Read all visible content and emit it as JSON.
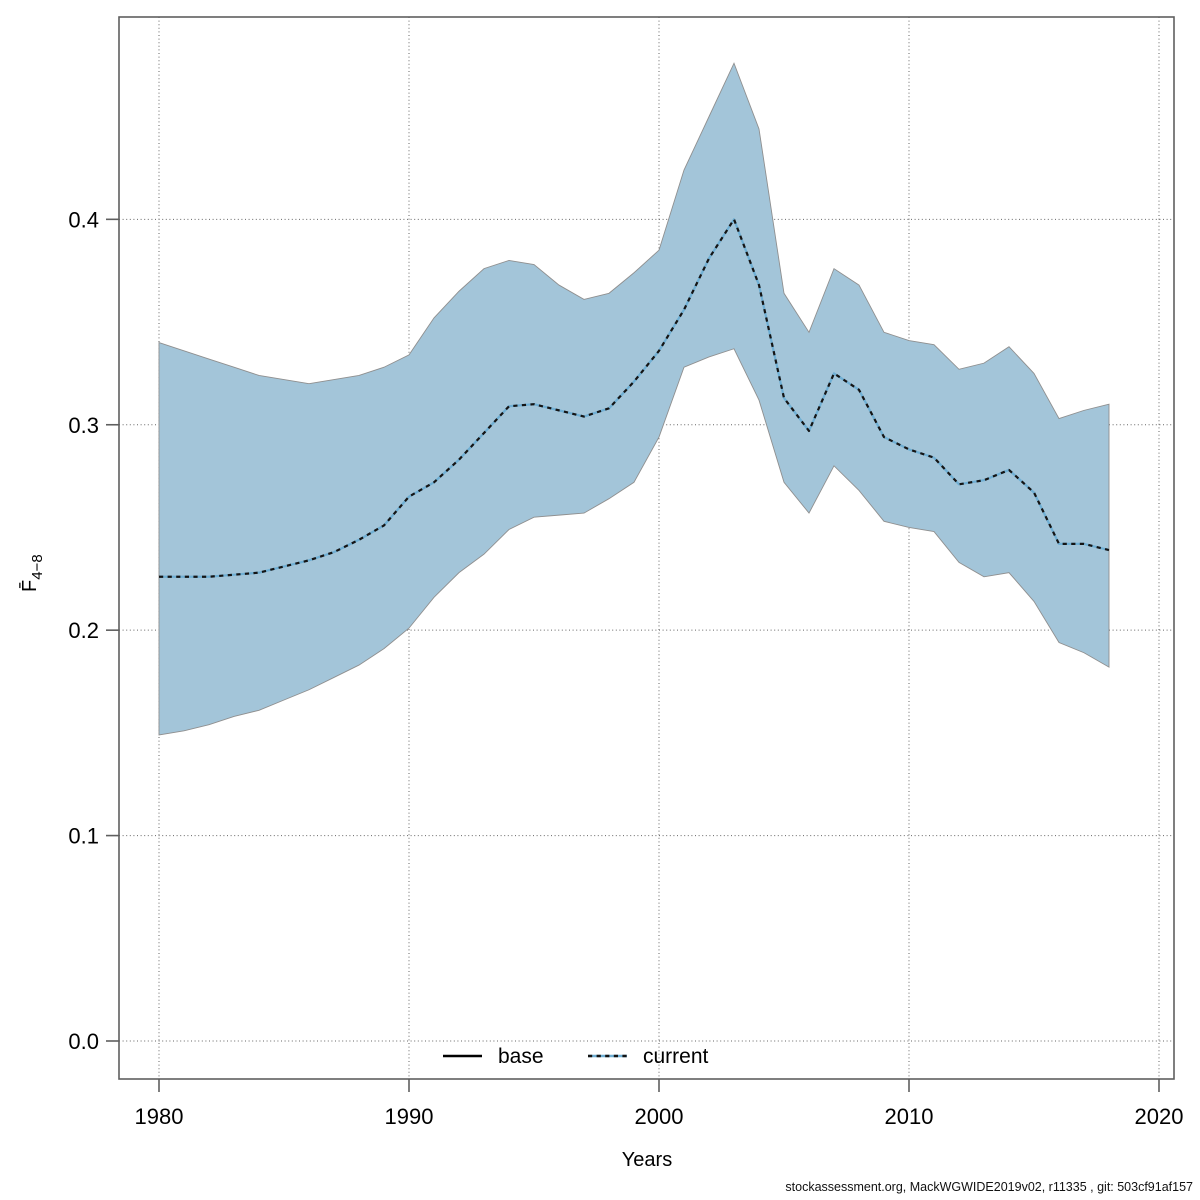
{
  "figure": {
    "xlabel": "Years",
    "ylabel_main": "F̄",
    "ylabel_sub": "4−8",
    "caption": "stockassessment.org, MackWGWIDE2019v02, r11335 , git: 503cf91af157",
    "legend": [
      {
        "label": "base",
        "style": "solid-black-line"
      },
      {
        "label": "current",
        "style": "dotted-blue-line"
      }
    ]
  },
  "chart_data": {
    "type": "line",
    "title": "",
    "xlabel": "Years",
    "ylabel": "F̄4−8",
    "grid": true,
    "legend_position": "bottom-center",
    "xlim": [
      1978.4,
      2020.6
    ],
    "ylim": [
      -0.0185,
      0.4985
    ],
    "xticks": [
      1980,
      1990,
      2000,
      2010,
      2020
    ],
    "xtick_labels": [
      "1980",
      "1990",
      "2000",
      "2010",
      "2020"
    ],
    "yticks": [
      0.0,
      0.1,
      0.2,
      0.3,
      0.4
    ],
    "ytick_labels": [
      "0.0",
      "0.1",
      "0.2",
      "0.3",
      "0.4"
    ],
    "x": [
      1980,
      1981,
      1982,
      1983,
      1984,
      1985,
      1986,
      1987,
      1988,
      1989,
      1990,
      1991,
      1992,
      1993,
      1994,
      1995,
      1996,
      1997,
      1998,
      1999,
      2000,
      2001,
      2002,
      2003,
      2004,
      2005,
      2006,
      2007,
      2008,
      2009,
      2010,
      2011,
      2012,
      2013,
      2014,
      2015,
      2016,
      2017,
      2018
    ],
    "series": [
      {
        "name": "current",
        "role": "line",
        "values": [
          0.226,
          0.226,
          0.226,
          0.227,
          0.228,
          0.231,
          0.234,
          0.238,
          0.244,
          0.251,
          0.265,
          0.272,
          0.283,
          0.296,
          0.309,
          0.31,
          0.307,
          0.304,
          0.308,
          0.321,
          0.336,
          0.356,
          0.381,
          0.4,
          0.368,
          0.313,
          0.297,
          0.325,
          0.317,
          0.294,
          0.288,
          0.284,
          0.271,
          0.273,
          0.278,
          0.267,
          0.242,
          0.242,
          0.239
        ]
      },
      {
        "name": "current_ci_lower",
        "role": "band-lower",
        "values": [
          0.149,
          0.151,
          0.154,
          0.158,
          0.161,
          0.166,
          0.171,
          0.177,
          0.183,
          0.191,
          0.201,
          0.216,
          0.228,
          0.237,
          0.249,
          0.255,
          0.256,
          0.257,
          0.264,
          0.272,
          0.294,
          0.328,
          0.333,
          0.337,
          0.312,
          0.272,
          0.257,
          0.28,
          0.268,
          0.253,
          0.25,
          0.248,
          0.233,
          0.226,
          0.228,
          0.214,
          0.194,
          0.189,
          0.182
        ]
      },
      {
        "name": "current_ci_upper",
        "role": "band-upper",
        "values": [
          0.34,
          0.336,
          0.332,
          0.328,
          0.324,
          0.322,
          0.32,
          0.322,
          0.324,
          0.328,
          0.334,
          0.352,
          0.365,
          0.376,
          0.38,
          0.378,
          0.368,
          0.361,
          0.364,
          0.374,
          0.385,
          0.424,
          0.45,
          0.476,
          0.444,
          0.364,
          0.345,
          0.376,
          0.368,
          0.345,
          0.341,
          0.339,
          0.327,
          0.33,
          0.338,
          0.325,
          0.303,
          0.307,
          0.31
        ]
      }
    ],
    "colors": {
      "band_fill": "#a3c5d9",
      "band_edge": "#8f8f8f",
      "line_blue": "#6fafd4",
      "line_dash": "#141414",
      "grid": "#666666",
      "axis": "#5f5f5f",
      "text": "#000000"
    }
  }
}
